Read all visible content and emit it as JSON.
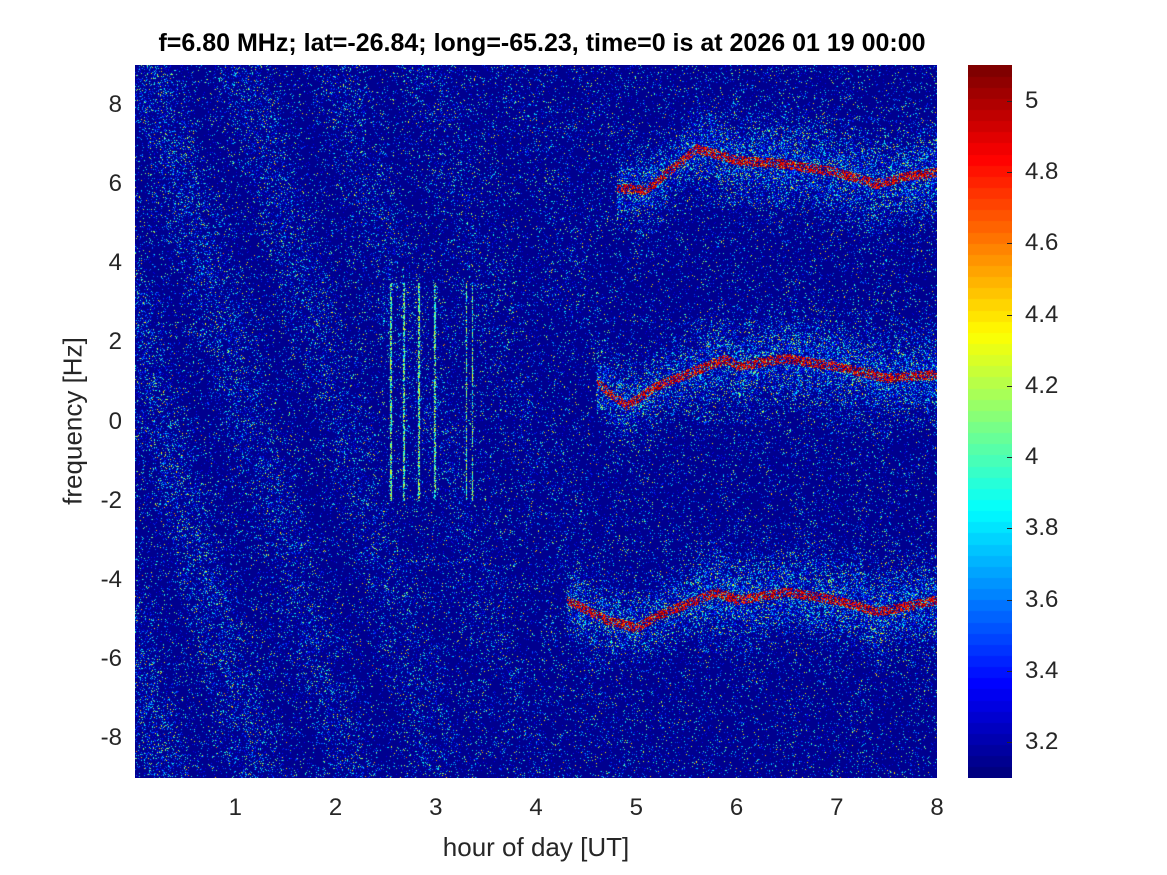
{
  "chart_data": {
    "type": "heatmap",
    "title": "f=6.80 MHz;  lat=-26.84; long=-65.23, time=0 is at 2026 01 19 00:00",
    "xlabel": "hour of day [UT]",
    "ylabel": "frequency [Hz]",
    "xlim": [
      0,
      8
    ],
    "ylim": [
      -9,
      9
    ],
    "x_ticks": [
      1,
      2,
      3,
      4,
      5,
      6,
      7,
      8
    ],
    "y_ticks": [
      8,
      6,
      4,
      2,
      0,
      -2,
      -4,
      -6,
      -8
    ],
    "colormap": "jet",
    "colorbar": {
      "limits": [
        3.1,
        5.1
      ],
      "ticks": [
        5,
        4.8,
        4.6,
        4.4,
        4.2,
        4,
        3.8,
        3.6,
        3.4,
        3.2
      ]
    },
    "features": [
      {
        "name": "upper trace",
        "points": [
          [
            4.8,
            5.9
          ],
          [
            5.1,
            5.85
          ],
          [
            5.6,
            6.9
          ],
          [
            6.0,
            6.6
          ],
          [
            6.5,
            6.5
          ],
          [
            7.0,
            6.3
          ],
          [
            7.4,
            6.0
          ],
          [
            7.7,
            6.2
          ],
          [
            8.0,
            6.3
          ]
        ]
      },
      {
        "name": "middle trace",
        "points": [
          [
            4.6,
            1.0
          ],
          [
            4.9,
            0.4
          ],
          [
            5.2,
            0.9
          ],
          [
            5.9,
            1.6
          ],
          [
            6.0,
            1.4
          ],
          [
            6.5,
            1.6
          ],
          [
            7.0,
            1.4
          ],
          [
            7.5,
            1.1
          ],
          [
            8.0,
            1.2
          ]
        ]
      },
      {
        "name": "lower trace",
        "points": [
          [
            4.3,
            -4.5
          ],
          [
            4.7,
            -5.0
          ],
          [
            5.0,
            -5.2
          ],
          [
            5.2,
            -4.9
          ],
          [
            5.8,
            -4.3
          ],
          [
            6.0,
            -4.5
          ],
          [
            6.5,
            -4.3
          ],
          [
            7.0,
            -4.5
          ],
          [
            7.4,
            -4.8
          ],
          [
            8.0,
            -4.5
          ]
        ]
      }
    ]
  }
}
